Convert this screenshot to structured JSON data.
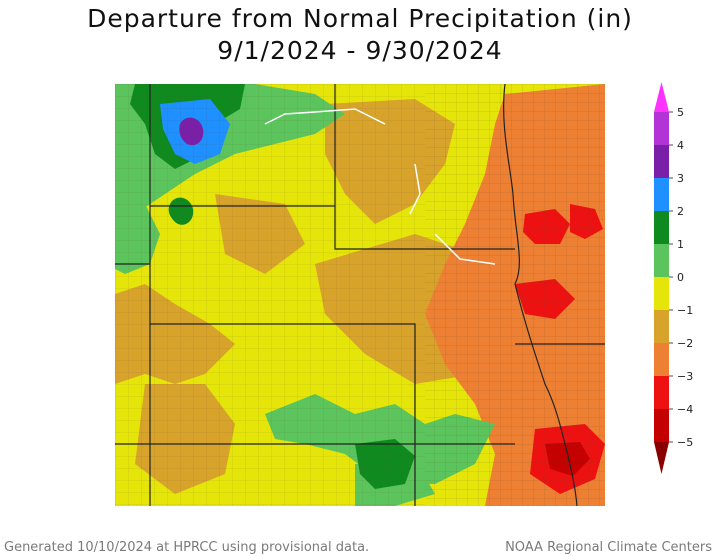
{
  "title": "Departure from Normal Precipitation (in)",
  "date_range": "9/1/2024 - 9/30/2024",
  "legend": {
    "labels": [
      "5",
      "4",
      "3",
      "2",
      "1",
      "0",
      "−1",
      "−2",
      "−3",
      "−4",
      "−5"
    ],
    "colors": {
      "gt5": "#ff33ff",
      "4_5": "#b233d6",
      "3_4": "#7a1fa8",
      "2_3": "#1e90ff",
      "1_2": "#0f8a1f",
      "0_1": "#5cc45c",
      "m1_0": "#e5e50a",
      "m2_m1": "#d8a32b",
      "m3_m2": "#ee8033",
      "m4_m3": "#ee1111",
      "m5_m4": "#c40000",
      "lt_m5": "#8a0000"
    }
  },
  "footer": {
    "left": "Generated 10/10/2024 at HPRCC using provisional data.",
    "right": "NOAA Regional Climate Centers"
  }
}
